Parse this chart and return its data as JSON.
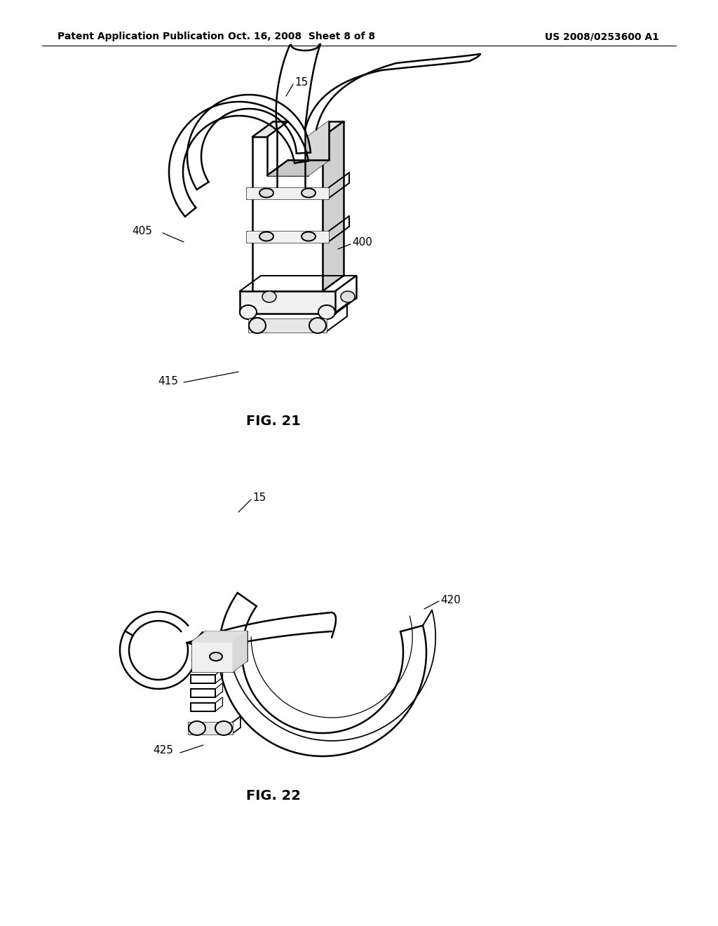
{
  "bg_color": "#ffffff",
  "header_left": "Patent Application Publication",
  "header_center": "Oct. 16, 2008  Sheet 8 of 8",
  "header_right": "US 2008/0253600 A1",
  "fig21_label": "FIG. 21",
  "fig22_label": "FIG. 22",
  "line_color": "#000000",
  "line_width": 1.8,
  "font_size_header": 10,
  "font_size_label": 14,
  "font_size_annotation": 11
}
